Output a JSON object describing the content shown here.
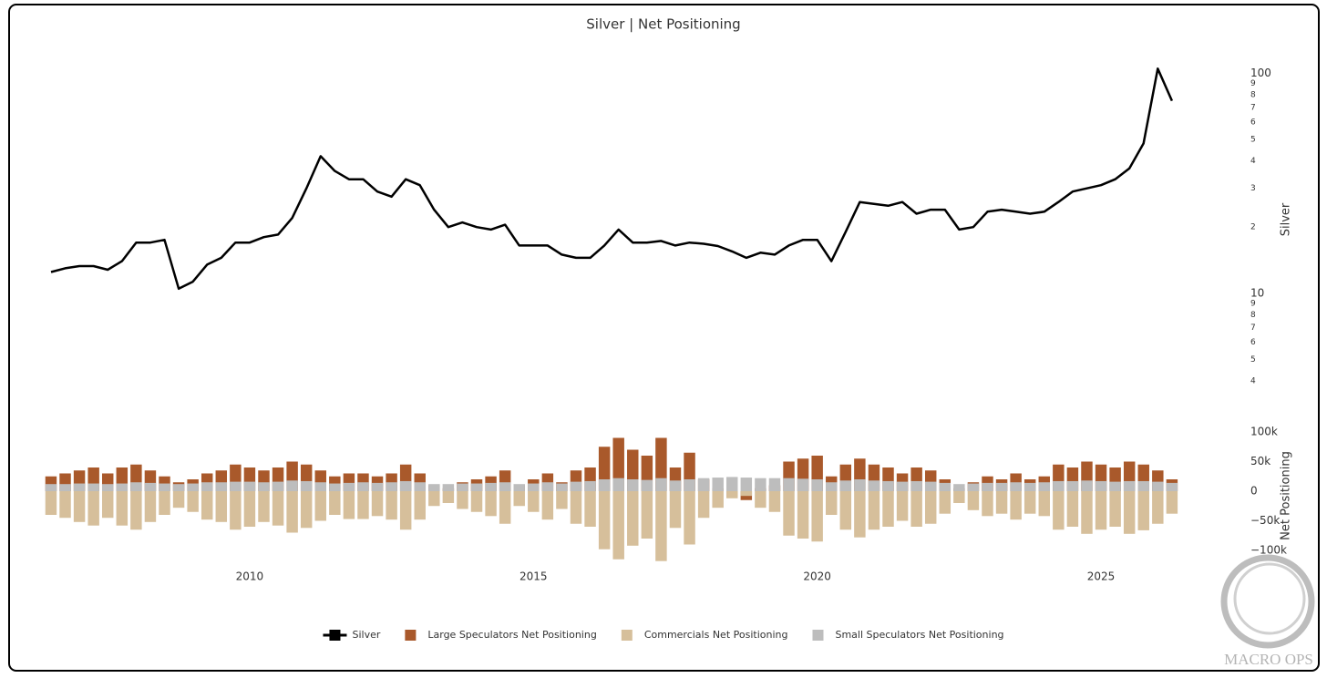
{
  "chart_data": [
    {
      "type": "line",
      "title": "Silver | Net Positioning",
      "y_label": "Silver",
      "log": true,
      "xlim": [
        2006.3,
        2026.3
      ],
      "xticks": [
        2010,
        2015,
        2020,
        2025
      ],
      "ylim": [
        3.5,
        125
      ],
      "yticks": [
        4,
        5,
        6,
        7,
        8,
        9,
        10,
        {
          "value": 20,
          "label": "2"
        },
        {
          "value": 30,
          "label": "3"
        },
        {
          "value": 40,
          "label": "4"
        },
        {
          "value": 50,
          "label": "5"
        },
        {
          "value": 60,
          "label": "6"
        },
        {
          "value": 70,
          "label": "7"
        },
        {
          "value": 80,
          "label": "8"
        },
        {
          "value": 90,
          "label": "9"
        },
        100
      ],
      "x": [
        2006.5,
        2006.75,
        2007,
        2007.25,
        2007.5,
        2007.75,
        2008,
        2008.25,
        2008.5,
        2008.75,
        2009,
        2009.25,
        2009.5,
        2009.75,
        2010,
        2010.25,
        2010.5,
        2010.75,
        2011,
        2011.25,
        2011.5,
        2011.75,
        2012,
        2012.25,
        2012.5,
        2012.75,
        2013,
        2013.25,
        2013.5,
        2013.75,
        2014,
        2014.25,
        2014.5,
        2014.75,
        2015,
        2015.25,
        2015.5,
        2015.75,
        2016,
        2016.25,
        2016.5,
        2016.75,
        2017,
        2017.25,
        2017.5,
        2017.75,
        2018,
        2018.25,
        2018.5,
        2018.75,
        2019,
        2019.25,
        2019.5,
        2019.75,
        2020,
        2020.25,
        2020.5,
        2020.75,
        2021,
        2021.25,
        2021.5,
        2021.75,
        2022,
        2022.25,
        2022.5,
        2022.75,
        2023,
        2023.25,
        2023.5,
        2023.75,
        2024,
        2024.25,
        2024.5,
        2024.75,
        2025,
        2025.25,
        2025.5,
        2025.75,
        2026,
        2026.25
      ],
      "series": [
        {
          "name": "Silver",
          "color": "#000000",
          "values": [
            12.5,
            13,
            13.3,
            13.3,
            12.8,
            14,
            17,
            17,
            17.5,
            10.5,
            11.3,
            13.5,
            14.5,
            17,
            17,
            18,
            18.5,
            22,
            30,
            42,
            36,
            33,
            33,
            29,
            27.5,
            33,
            31,
            24,
            20,
            21,
            20,
            19.5,
            20.5,
            16.5,
            16.5,
            16.5,
            15,
            14.5,
            14.5,
            16.5,
            19.5,
            17,
            17,
            17.3,
            16.5,
            17,
            16.8,
            16.4,
            15.5,
            14.5,
            15.3,
            15,
            16.5,
            17.5,
            17.5,
            14,
            19,
            26,
            25.5,
            25,
            26,
            23,
            24,
            24,
            19.5,
            20,
            23.5,
            24,
            23.5,
            23,
            23.5,
            26,
            29,
            30,
            31,
            33,
            37,
            48,
            105,
            75
          ]
        }
      ]
    },
    {
      "type": "bar",
      "y_label": "Net Positioning",
      "barmode": "overlay",
      "xlim": [
        2006.3,
        2026.3
      ],
      "ylim": [
        -120000,
        110000
      ],
      "yticks": [
        {
          "value": 100000,
          "label": "100k"
        },
        {
          "value": 50000,
          "label": "50k"
        },
        0,
        {
          "value": -50000,
          "label": "−50k"
        },
        {
          "value": -100000,
          "label": "−100k"
        }
      ],
      "x": [
        2006.5,
        2006.75,
        2007,
        2007.25,
        2007.5,
        2007.75,
        2008,
        2008.25,
        2008.5,
        2008.75,
        2009,
        2009.25,
        2009.5,
        2009.75,
        2010,
        2010.25,
        2010.5,
        2010.75,
        2011,
        2011.25,
        2011.5,
        2011.75,
        2012,
        2012.25,
        2012.5,
        2012.75,
        2013,
        2013.25,
        2013.5,
        2013.75,
        2014,
        2014.25,
        2014.5,
        2014.75,
        2015,
        2015.25,
        2015.5,
        2015.75,
        2016,
        2016.25,
        2016.5,
        2016.75,
        2017,
        2017.25,
        2017.5,
        2017.75,
        2018,
        2018.25,
        2018.5,
        2018.75,
        2019,
        2019.25,
        2019.5,
        2019.75,
        2020,
        2020.25,
        2020.5,
        2020.75,
        2021,
        2021.25,
        2021.5,
        2021.75,
        2022,
        2022.25,
        2022.5,
        2022.75,
        2023,
        2023.25,
        2023.5,
        2023.75,
        2024,
        2024.25,
        2024.5,
        2024.75,
        2025,
        2025.25,
        2025.5,
        2025.75,
        2026,
        2026.25
      ],
      "series": [
        {
          "name": "Large Speculators Net Positioning",
          "color": "#a9592b",
          "values": [
            25000,
            30000,
            35000,
            40000,
            30000,
            40000,
            45000,
            35000,
            25000,
            15000,
            20000,
            30000,
            35000,
            45000,
            40000,
            35000,
            40000,
            50000,
            45000,
            35000,
            25000,
            30000,
            30000,
            25000,
            30000,
            45000,
            30000,
            10000,
            5000,
            15000,
            20000,
            25000,
            35000,
            10000,
            20000,
            30000,
            15000,
            35000,
            40000,
            75000,
            90000,
            70000,
            60000,
            90000,
            40000,
            65000,
            20000,
            5000,
            -10000,
            -15000,
            5000,
            10000,
            50000,
            55000,
            60000,
            25000,
            45000,
            55000,
            45000,
            40000,
            30000,
            40000,
            35000,
            20000,
            5000,
            15000,
            25000,
            20000,
            30000,
            20000,
            25000,
            45000,
            40000,
            50000,
            45000,
            40000,
            50000,
            45000,
            35000,
            20000
          ]
        },
        {
          "name": "Commercials Net Positioning",
          "color": "#d6bf9b",
          "values": [
            -40000,
            -45000,
            -52000,
            -58000,
            -45000,
            -58000,
            -65000,
            -52000,
            -40000,
            -28000,
            -35000,
            -48000,
            -52000,
            -65000,
            -60000,
            -52000,
            -58000,
            -70000,
            -62000,
            -50000,
            -40000,
            -47000,
            -47000,
            -42000,
            -48000,
            -65000,
            -48000,
            -25000,
            -20000,
            -30000,
            -35000,
            -42000,
            -55000,
            -25000,
            -35000,
            -48000,
            -30000,
            -55000,
            -60000,
            -98000,
            -115000,
            -92000,
            -80000,
            -118000,
            -62000,
            -90000,
            -45000,
            -28000,
            -12000,
            -8000,
            -28000,
            -35000,
            -75000,
            -80000,
            -85000,
            -40000,
            -65000,
            -78000,
            -65000,
            -60000,
            -50000,
            -60000,
            -55000,
            -38000,
            -20000,
            -32000,
            -42000,
            -38000,
            -48000,
            -38000,
            -42000,
            -65000,
            -60000,
            -72000,
            -65000,
            -60000,
            -72000,
            -66000,
            -55000,
            -38000
          ]
        },
        {
          "name": "Small Speculators Net Positioning",
          "color": "#bdbdbd",
          "values": [
            12000,
            12000,
            13000,
            13000,
            12000,
            13000,
            15000,
            14000,
            13000,
            12000,
            13000,
            15000,
            15000,
            16000,
            16000,
            15000,
            16000,
            18000,
            17000,
            15000,
            13000,
            14000,
            15000,
            14000,
            15000,
            17000,
            15000,
            12000,
            12000,
            13000,
            13000,
            14000,
            15000,
            12000,
            13000,
            15000,
            13000,
            16000,
            17000,
            20000,
            22000,
            20000,
            19000,
            22000,
            18000,
            20000,
            22000,
            23000,
            24000,
            23000,
            22000,
            22000,
            22000,
            21000,
            20000,
            15000,
            18000,
            20000,
            18000,
            17000,
            16000,
            17000,
            16000,
            14000,
            12000,
            13000,
            14000,
            14000,
            15000,
            14000,
            15000,
            17000,
            17000,
            18000,
            17000,
            16000,
            17000,
            17000,
            16000,
            14000
          ]
        }
      ]
    }
  ],
  "watermark": "MACRO OPS"
}
